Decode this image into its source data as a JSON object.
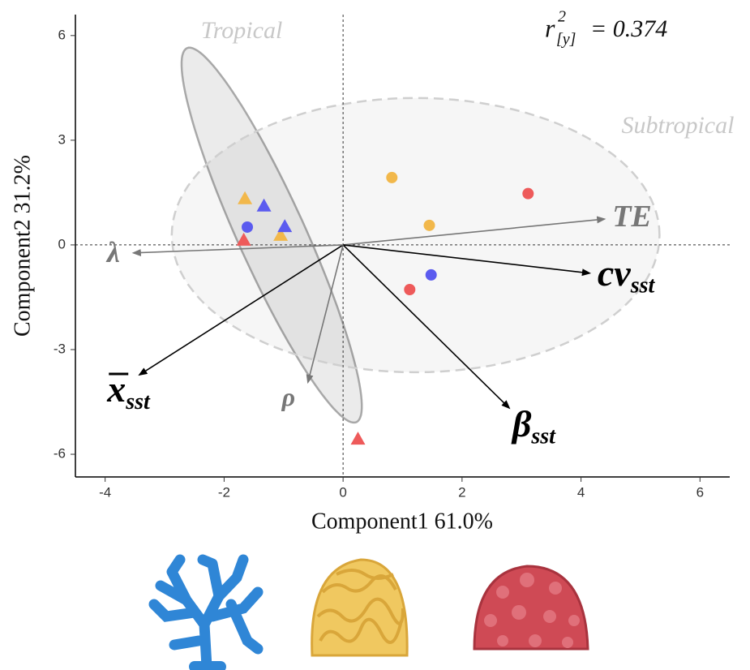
{
  "chart_data": {
    "type": "biplot",
    "xlabel": "Component1 61.0%",
    "ylabel": "Component2 31.2%",
    "xlim": [
      -4.5,
      6.5
    ],
    "ylim": [
      -6.65,
      6.6
    ],
    "xticks": [
      -4,
      -2,
      0,
      2,
      4,
      6
    ],
    "yticks": [
      -6,
      -3,
      0,
      3,
      6
    ],
    "zero_lines": true,
    "annotation": {
      "symbol": "r",
      "sup": "2",
      "sub": "[y]",
      "text": "= 0.374"
    },
    "series": [
      {
        "color": "#f2b84b",
        "marker": "circle",
        "x": [
          0.82,
          1.45
        ],
        "y": [
          1.93,
          0.56
        ]
      },
      {
        "color": "#ee5a5a",
        "marker": "circle",
        "x": [
          3.11,
          1.12
        ],
        "y": [
          1.47,
          -1.28
        ]
      },
      {
        "color": "#5b5bef",
        "marker": "circle",
        "x": [
          1.48,
          -1.61
        ],
        "y": [
          -0.86,
          0.51
        ]
      },
      {
        "color": "#f2b84b",
        "marker": "triangle",
        "x": [
          -1.65,
          -1.05
        ],
        "y": [
          1.33,
          0.28
        ]
      },
      {
        "color": "#5b5bef",
        "marker": "triangle",
        "x": [
          -1.33,
          -0.98
        ],
        "y": [
          1.12,
          0.53
        ]
      },
      {
        "color": "#ee5a5a",
        "marker": "triangle",
        "x": [
          -1.67,
          0.25
        ],
        "y": [
          0.14,
          -5.56
        ]
      }
    ],
    "ellipses": [
      {
        "name": "Tropical",
        "center": [
          -1.2,
          0.28
        ],
        "radii": [
          5.55,
          0.6
        ],
        "angle": -75.4,
        "dashed": false
      },
      {
        "name": "Subtropical",
        "center": [
          1.22,
          0.28
        ],
        "radii": [
          4.1,
          3.93
        ],
        "angle": 0,
        "dashed": true
      }
    ],
    "vectors": [
      {
        "name": "TE",
        "x": 4.39,
        "y": 0.74,
        "color": "#777777"
      },
      {
        "name": "cv",
        "sub": "sst",
        "x": 4.14,
        "y": -0.81,
        "color": "#000000"
      },
      {
        "name": "β",
        "sub": "sst",
        "x": 2.79,
        "y": -4.67,
        "color": "#000000"
      },
      {
        "name": "ρ",
        "x": -0.59,
        "y": -3.93,
        "color": "#777777"
      },
      {
        "name": "x",
        "sub": "sst",
        "overline": true,
        "x": -3.42,
        "y": -3.72,
        "color": "#000000"
      },
      {
        "name": "λ",
        "x": -3.52,
        "y": -0.23,
        "color": "#777777"
      }
    ]
  }
}
